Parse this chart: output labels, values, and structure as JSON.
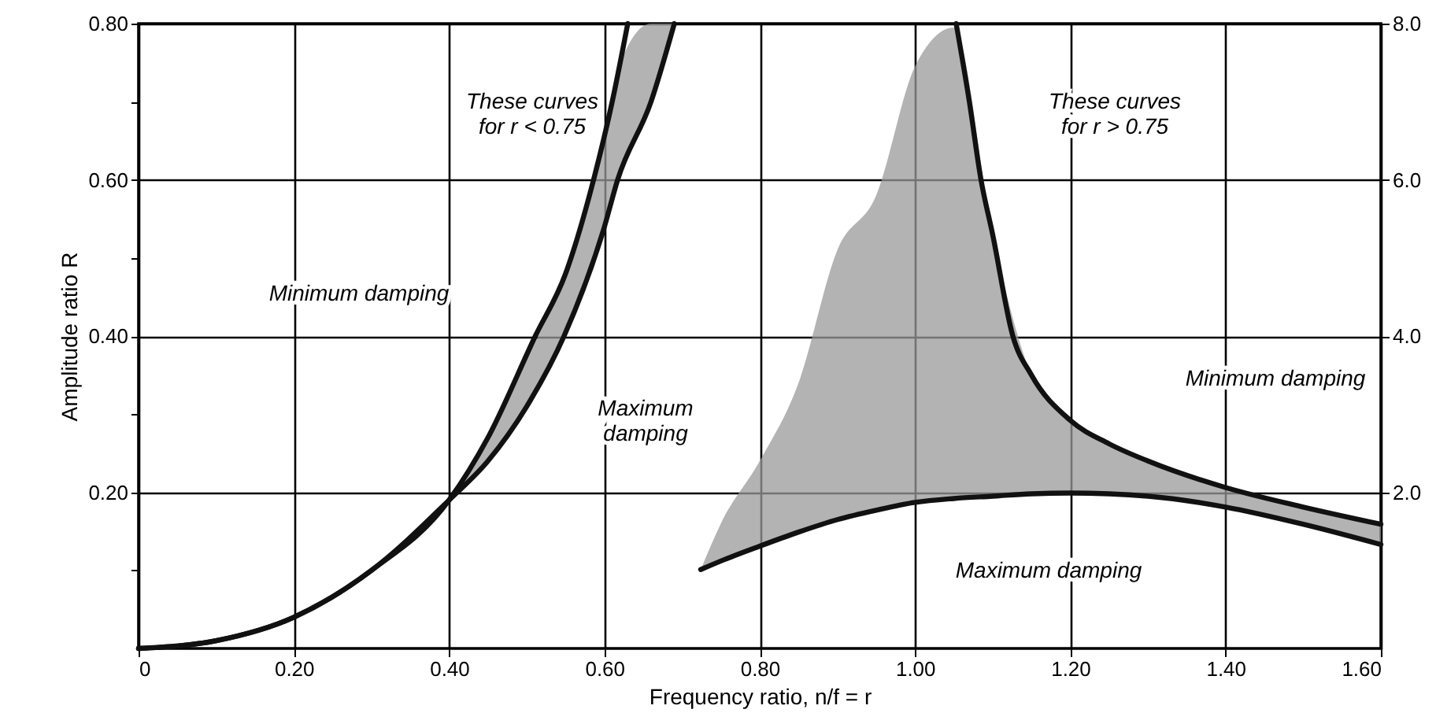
{
  "chart_data": {
    "type": "line",
    "xlabel": "Frequency ratio, n/f = r",
    "ylabel": "Amplitude ratio R",
    "grid": true,
    "line_style": "solid",
    "xlim": [
      0,
      1.6
    ],
    "xticks": [
      {
        "value": 0,
        "label": "0"
      },
      {
        "value": 0.2,
        "label": "0.20"
      },
      {
        "value": 0.4,
        "label": "0.40"
      },
      {
        "value": 0.6,
        "label": "0.60"
      },
      {
        "value": 0.8,
        "label": "0.80"
      },
      {
        "value": 1,
        "label": "1.00"
      },
      {
        "value": 1.2,
        "label": "1.20"
      },
      {
        "value": 1.4,
        "label": "1.40"
      },
      {
        "value": 1.6,
        "label": "1.60"
      }
    ],
    "ylim": [
      0,
      0.8
    ],
    "yticks": [
      {
        "value": 0.1,
        "label": null
      },
      {
        "value": 0.2,
        "label": "0.20"
      },
      {
        "value": 0.3,
        "label": null
      },
      {
        "value": 0.4,
        "label": "0.40"
      },
      {
        "value": 0.5,
        "label": null
      },
      {
        "value": 0.6,
        "label": "0.60"
      },
      {
        "value": 0.7,
        "label": null
      },
      {
        "value": 0.8,
        "label": "0.80"
      }
    ],
    "y2lim": [
      0,
      8
    ],
    "y2ticks": [
      {
        "value": 2,
        "label": "2.0"
      },
      {
        "value": 4,
        "label": "4.0"
      },
      {
        "value": 6,
        "label": "6.0"
      },
      {
        "value": 8,
        "label": "8.0"
      }
    ],
    "series": [
      {
        "color": "#111111",
        "x": [
          0,
          0.1,
          0.2,
          0.3,
          0.4,
          0.45,
          0.511,
          0.55,
          0.586,
          0.61,
          0.63
        ],
        "values": [
          0,
          0.01,
          0.04,
          0.1,
          0.19,
          0.27,
          0.4,
          0.48,
          0.6,
          0.7,
          0.8
        ]
      },
      {
        "color": "#111111",
        "x": [
          0,
          0.1,
          0.2,
          0.3,
          0.4,
          0.45,
          0.5,
          0.548,
          0.6,
          0.617,
          0.66,
          0.69
        ],
        "values": [
          0,
          0.01,
          0.04,
          0.1,
          0.19,
          0.24,
          0.31,
          0.4,
          0.54,
          0.6,
          0.7,
          0.8
        ],
        "lower": [
          0,
          0.01,
          0.04,
          0.1,
          0.19,
          0.24,
          0.31,
          0.4,
          0.54,
          0.6,
          0.7,
          0.8
        ],
        "upper": [
          0,
          0.01,
          0.04,
          0.1,
          0.19,
          0.27,
          0.37,
          0.475,
          0.66,
          0.74,
          0.8,
          0.8
        ]
      },
      {
        "color": "#111111",
        "axis": "y2",
        "x": [
          1.053,
          1.07,
          1.085,
          1.1,
          1.126,
          1.15,
          1.2,
          1.25,
          1.3,
          1.4,
          1.5,
          1.6
        ],
        "values": [
          8,
          7,
          6,
          5.3,
          4,
          3.5,
          2.92,
          2.62,
          2.4,
          2.06,
          1.81,
          1.59
        ]
      },
      {
        "color": "#111111",
        "axis": "y2",
        "x": [
          0.724,
          0.75,
          0.8,
          0.85,
          0.9,
          0.95,
          1,
          1.05,
          1.1,
          1.15,
          1.2,
          1.3,
          1.4,
          1.5,
          1.6
        ],
        "values": [
          1.01,
          1.12,
          1.31,
          1.49,
          1.65,
          1.77,
          1.87,
          1.92,
          1.95,
          1.98,
          1.99,
          1.95,
          1.81,
          1.59,
          1.33
        ],
        "lower": [
          1.01,
          1.12,
          1.31,
          1.49,
          1.65,
          1.77,
          1.87,
          1.92,
          1.95,
          1.98,
          1.99,
          1.95,
          1.81,
          1.59,
          1.33
        ],
        "upper": [
          1.01,
          1.6,
          2.4,
          3.4,
          5.1,
          5.8,
          7.45,
          7.95,
          5.3,
          3.5,
          2.92,
          2.4,
          2.06,
          1.81,
          1.59
        ]
      }
    ],
    "annotations": [
      "These curves\nfor r < 0.75",
      "Minimum damping",
      "Maximum\ndamping",
      "These curves\nfor r > 0.75",
      "Minimum damping",
      "Maximum damping"
    ]
  }
}
